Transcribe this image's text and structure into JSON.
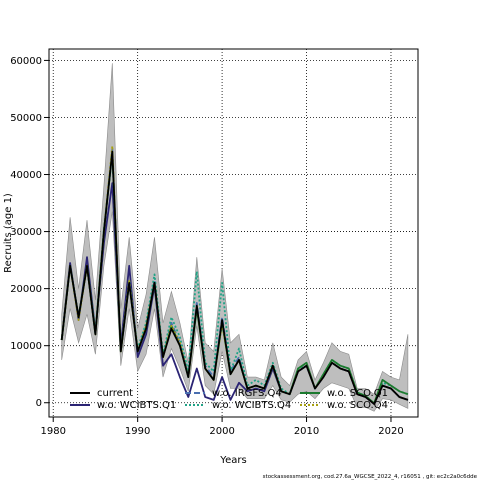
{
  "chart_data": {
    "type": "line",
    "title": "",
    "xlabel": "Years",
    "ylabel": "Recruits (age 1)",
    "xlim": [
      1979.5,
      2023.2
    ],
    "ylim": [
      -2500,
      62000
    ],
    "xticks": [
      1980,
      1990,
      2000,
      2010,
      2020
    ],
    "yticks": [
      0,
      10000,
      20000,
      30000,
      40000,
      50000,
      60000
    ],
    "grid": true,
    "legend_position": "bottom-left",
    "x": [
      1981,
      1982,
      1983,
      1984,
      1985,
      1986,
      1987,
      1988,
      1989,
      1990,
      1991,
      1992,
      1993,
      1994,
      1995,
      1996,
      1997,
      1998,
      1999,
      2000,
      2001,
      2002,
      2003,
      2004,
      2005,
      2006,
      2007,
      2008,
      2009,
      2010,
      2011,
      2012,
      2013,
      2014,
      2015,
      2016,
      2017,
      2018,
      2019,
      2020,
      2021,
      2022
    ],
    "band": {
      "name": "",
      "color": "#bebebe",
      "upper": [
        15500,
        32500,
        20000,
        32000,
        18000,
        38000,
        59500,
        16500,
        29000,
        13000,
        19000,
        29000,
        14000,
        19500,
        14000,
        7000,
        25500,
        10500,
        9000,
        23500,
        10500,
        12000,
        4500,
        4500,
        4000,
        10500,
        4500,
        3000,
        7500,
        9000,
        4000,
        7000,
        10500,
        9000,
        8500,
        2500,
        2500,
        1500,
        5500,
        4500,
        4000,
        12000
      ],
      "lower": [
        7500,
        16500,
        10500,
        15500,
        8500,
        24000,
        33500,
        6500,
        16500,
        5500,
        8500,
        16500,
        4500,
        9500,
        6000,
        2000,
        13500,
        3000,
        1500,
        9000,
        2500,
        2500,
        700,
        700,
        700,
        3000,
        500,
        100,
        1500,
        2000,
        700,
        2500,
        3500,
        3000,
        2500,
        -800,
        -800,
        -1500,
        700,
        500,
        -300,
        -1000
      ]
    },
    "series": [
      {
        "name": "current",
        "color": "#000000",
        "dash": "",
        "values": [
          11000,
          24000,
          15000,
          24000,
          12000,
          30000,
          44000,
          9000,
          21000,
          9000,
          13000,
          21000,
          8000,
          13000,
          10000,
          4500,
          17000,
          6000,
          4000,
          14500,
          5000,
          7500,
          2500,
          3000,
          2500,
          6500,
          2000,
          1500,
          5500,
          6500,
          2500,
          4500,
          7000,
          6000,
          5500,
          1500,
          1000,
          -200,
          3000,
          2500,
          1000,
          500
        ]
      },
      {
        "name": "w.o. WCIBTS.Q1",
        "color": "#2b2474",
        "dash": "",
        "values": [
          11000,
          24500,
          14500,
          25500,
          12500,
          28000,
          38500,
          10000,
          24000,
          8000,
          12000,
          20500,
          6500,
          8500,
          4500,
          1000,
          6000,
          1000,
          500,
          4500,
          500,
          3500,
          2000,
          2500,
          2000,
          6000,
          2000,
          1500,
          5500,
          6500,
          2500,
          4500,
          7000,
          6000,
          5500,
          1500,
          1000,
          -200,
          3000,
          2500,
          1000,
          500
        ]
      },
      {
        "name": "w.o. IRGFS.Q4",
        "color": "#4a6fb0",
        "dash": "6,3",
        "values": [
          11000,
          24000,
          15000,
          24000,
          12000,
          30000,
          44500,
          9000,
          21500,
          9000,
          13500,
          21500,
          8000,
          14000,
          10500,
          5000,
          17500,
          6500,
          4500,
          15000,
          5500,
          8000,
          2500,
          3000,
          2500,
          6500,
          2000,
          1500,
          5500,
          6500,
          2500,
          4500,
          7000,
          6000,
          5500,
          1500,
          1000,
          -200,
          3000,
          2500,
          1000,
          500
        ]
      },
      {
        "name": "w.o. WCIBTS.Q4",
        "color": "#20a386",
        "dash": "2,2",
        "values": [
          11000,
          24000,
          15000,
          24000,
          12500,
          30500,
          43500,
          9000,
          21500,
          9500,
          14000,
          22500,
          8500,
          15000,
          11500,
          5500,
          23000,
          7000,
          5500,
          21000,
          5500,
          9500,
          3000,
          4000,
          3000,
          7000,
          2500,
          1500,
          6000,
          6500,
          2500,
          5000,
          7500,
          6500,
          6000,
          1800,
          1200,
          -100,
          3500,
          3000,
          2000,
          1500
        ]
      },
      {
        "name": "w.o. SCO.Q1",
        "color": "#1b7a2e",
        "dash": "",
        "values": [
          11000,
          24000,
          15000,
          24000,
          12000,
          30000,
          44000,
          9000,
          21000,
          9000,
          13000,
          21000,
          8000,
          13500,
          10000,
          4500,
          16500,
          6000,
          4000,
          14000,
          5000,
          7500,
          2500,
          3000,
          2500,
          6500,
          2000,
          1500,
          6000,
          7000,
          2500,
          5000,
          7500,
          6500,
          6000,
          1800,
          1200,
          -100,
          4000,
          3000,
          2000,
          1500
        ]
      },
      {
        "name": "w.o. SCO.Q4",
        "color": "#a8a010",
        "dash": "2,2",
        "values": [
          11000,
          24000,
          14500,
          24000,
          12000,
          30000,
          45000,
          9000,
          21500,
          9000,
          13500,
          21000,
          8000,
          13500,
          10500,
          4500,
          17000,
          6000,
          4000,
          14000,
          5000,
          7500,
          2500,
          3000,
          2500,
          6500,
          2000,
          1500,
          5500,
          6500,
          2500,
          4500,
          7000,
          6000,
          5500,
          1500,
          1000,
          -200,
          3000,
          2500,
          1000,
          500
        ]
      }
    ]
  },
  "footer": "stockassessment.org, cod.27.6a_WGCSE_2022_4, r16051 , git: ec2c2a0c6dde"
}
